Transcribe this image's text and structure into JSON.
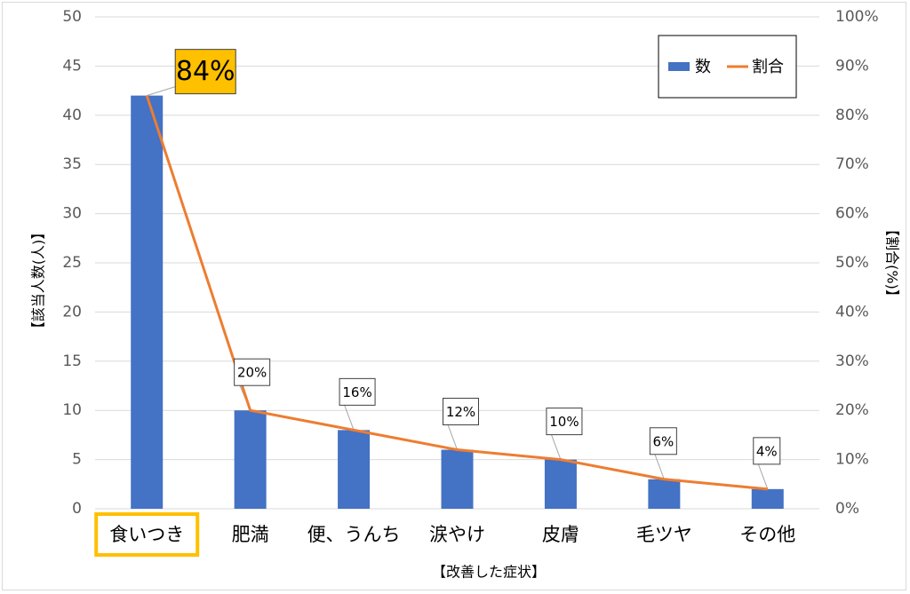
{
  "chart_data": {
    "type": "bar",
    "categories": [
      "食いつき",
      "肥満",
      "便、うんち",
      "涙やけ",
      "皮膚",
      "毛ツヤ",
      "その他"
    ],
    "highlighted_category": "食いつき",
    "series": [
      {
        "name": "数",
        "type": "bar",
        "axis": "left",
        "color": "#4472C4",
        "values": [
          42,
          10,
          8,
          6,
          5,
          3,
          2
        ]
      },
      {
        "name": "割合",
        "type": "line",
        "axis": "right",
        "color": "#ED7D31",
        "values": [
          84,
          20,
          16,
          12,
          10,
          6,
          4
        ]
      }
    ],
    "data_labels": [
      "84%",
      "20%",
      "16%",
      "12%",
      "10%",
      "6%",
      "4%"
    ],
    "highlight_color": "#FFC000",
    "xlabel": "【改善した症状】",
    "ylabel": "【該当人数(人)】",
    "y2label": "【割合(%)】",
    "ylim": [
      0,
      50
    ],
    "y2lim": [
      0,
      100
    ],
    "yticks": [
      "0",
      "5",
      "10",
      "15",
      "20",
      "25",
      "30",
      "35",
      "40",
      "45",
      "50"
    ],
    "y2ticks": [
      "0%",
      "10%",
      "20%",
      "30%",
      "40%",
      "50%",
      "60%",
      "70%",
      "80%",
      "90%",
      "100%"
    ],
    "grid": true,
    "legend_position": "top-right"
  }
}
